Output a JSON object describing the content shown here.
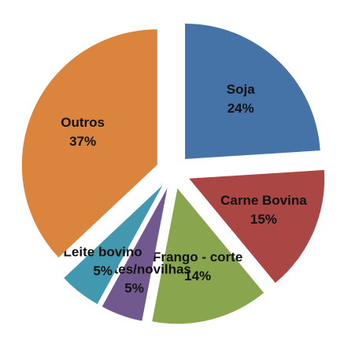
{
  "chart_data": {
    "type": "pie",
    "categories": [
      "Soja",
      "Carne Bovina",
      "Frango - corte",
      "Garrotes/novilhas",
      "Leite bovino",
      "Outros"
    ],
    "values": [
      24,
      15,
      14,
      5,
      5,
      37
    ],
    "value_labels": [
      "24%",
      "15%",
      "14%",
      "5%",
      "5%",
      "37%"
    ],
    "colors": [
      "#4573a7",
      "#aa4643",
      "#89a54e",
      "#71588f",
      "#4198af",
      "#db843d"
    ]
  }
}
